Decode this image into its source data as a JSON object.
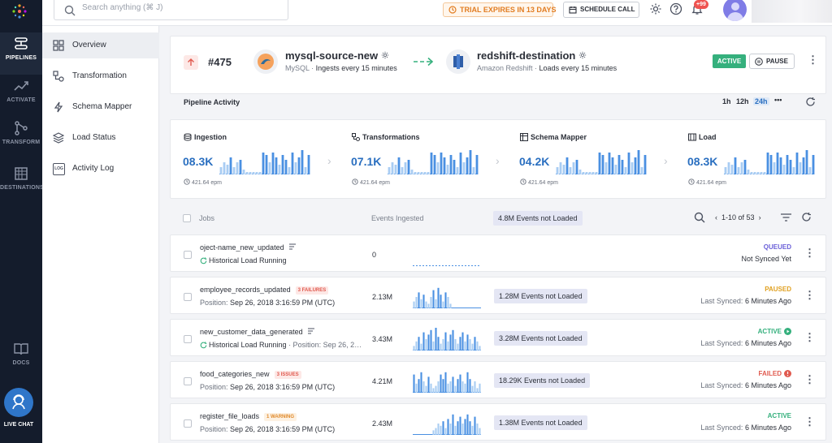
{
  "rail": {
    "items": [
      {
        "label": "PIPELINES",
        "icon": "pipelines-icon",
        "active": true
      },
      {
        "label": "ACTIVATE",
        "icon": "activate-icon",
        "active": false
      },
      {
        "label": "TRANSFORM",
        "icon": "transform-icon",
        "active": false
      },
      {
        "label": "DESTINATIONS",
        "icon": "destinations-icon",
        "active": false
      }
    ],
    "docs_label": "DOCS",
    "chat_label": "LIVE CHAT"
  },
  "topbar": {
    "search_placeholder": "Search anything (⌘ J)",
    "trial": "TRIAL EXPIRES IN 13 DAYS",
    "schedule_call": "SCHEDULE CALL",
    "notifications_count": "+99"
  },
  "subnav": {
    "items": [
      {
        "label": "Overview",
        "icon": "overview-icon",
        "active": true
      },
      {
        "label": "Transformation",
        "icon": "transformation-icon",
        "active": false
      },
      {
        "label": "Schema Mapper",
        "icon": "schema-mapper-icon",
        "active": false
      },
      {
        "label": "Load Status",
        "icon": "load-status-icon",
        "active": false
      },
      {
        "label": "Activity Log",
        "icon": "activity-log-icon",
        "active": false
      }
    ]
  },
  "pipeline": {
    "id": "#475",
    "source": {
      "name": "mysql-source-new",
      "type": "MySQL",
      "schedule": "Ingests every 15 minutes"
    },
    "destination": {
      "name": "redshift-destination",
      "type": "Amazon Redshift",
      "schedule": "Loads every 15 minutes"
    },
    "status": "ACTIVE",
    "pause_label": "PAUSE"
  },
  "activity": {
    "title": "Pipeline Activity",
    "ranges": [
      "1h",
      "12h",
      "24h"
    ],
    "selected_range": "24h",
    "more": "•••",
    "stats": [
      {
        "label": "Ingestion",
        "value": "08.3K",
        "epm": "421.64 epm",
        "bars": [
          0.3,
          0.5,
          0.4,
          0.7,
          0.3,
          0.5,
          0.6,
          0.2,
          0.1,
          0.1,
          0.1,
          0.1,
          0.1,
          0.9,
          0.8,
          0.5,
          0.9,
          0.7,
          0.4,
          0.8,
          0.6,
          0.3,
          0.9,
          0.5,
          0.7,
          1.0,
          0.3,
          0.8
        ]
      },
      {
        "label": "Transformations",
        "value": "07.1K",
        "epm": "421.64 epm",
        "bars": [
          0.3,
          0.5,
          0.4,
          0.7,
          0.3,
          0.5,
          0.6,
          0.2,
          0.1,
          0.1,
          0.1,
          0.1,
          0.1,
          0.9,
          0.8,
          0.5,
          0.9,
          0.7,
          0.4,
          0.8,
          0.6,
          0.3,
          0.9,
          0.5,
          0.7,
          1.0,
          0.3,
          0.8
        ]
      },
      {
        "label": "Schema Mapper",
        "value": "04.2K",
        "epm": "421.64 epm",
        "bars": [
          0.3,
          0.5,
          0.4,
          0.7,
          0.3,
          0.5,
          0.6,
          0.2,
          0.1,
          0.1,
          0.1,
          0.1,
          0.1,
          0.9,
          0.8,
          0.5,
          0.9,
          0.7,
          0.4,
          0.8,
          0.6,
          0.3,
          0.9,
          0.5,
          0.7,
          1.0,
          0.3,
          0.8
        ]
      },
      {
        "label": "Load",
        "value": "08.3K",
        "epm": "421.64 epm",
        "bars": [
          0.3,
          0.5,
          0.4,
          0.7,
          0.3,
          0.5,
          0.6,
          0.2,
          0.1,
          0.1,
          0.1,
          0.1,
          0.1,
          0.9,
          0.8,
          0.5,
          0.9,
          0.7,
          0.4,
          0.8,
          0.6,
          0.3,
          0.9,
          0.5,
          0.7,
          1.0,
          0.3,
          0.8
        ]
      }
    ]
  },
  "jobs": {
    "header": {
      "jobs": "Jobs",
      "events": "Events Ingested",
      "not_loaded": "4.8M Events not Loaded",
      "pager": "1-10 of 53"
    },
    "rows": [
      {
        "name": "oject-name_new_updated",
        "tag": "",
        "tag_color": "",
        "has_list_icon": true,
        "sub_prefix": "",
        "sub_value": "Historical Load Running",
        "sub_suffix": "",
        "sub_icon": "refresh-icon",
        "count": "0",
        "bars": [],
        "not_loaded": "",
        "status": "QUEUED",
        "status_color": "#6a5fd8",
        "status_icon": "",
        "sync_prefix": "",
        "sync_value": "Not Synced Yet"
      },
      {
        "name": "employee_records_updated",
        "tag": "3 FAILURES",
        "tag_color": "red",
        "has_list_icon": false,
        "sub_prefix": "Position: ",
        "sub_value": "Sep 26, 2018 3:16:59 PM (UTC)",
        "sub_suffix": "",
        "sub_icon": "",
        "count": "2.13M",
        "bars": [
          0.3,
          0.5,
          0.7,
          0.4,
          0.6,
          0.3,
          0.2,
          0.5,
          0.8,
          0.4,
          0.9,
          0.6,
          0.3,
          0.7,
          0.5,
          0.2,
          0,
          0,
          0,
          0,
          0,
          0,
          0,
          0,
          0,
          0,
          0,
          0
        ],
        "not_loaded": "1.28M Events not Loaded",
        "status": "PAUSED",
        "status_color": "#e0a020",
        "status_icon": "",
        "sync_prefix": "Last Synced: ",
        "sync_value": "6 Minutes Ago"
      },
      {
        "name": "new_customer_data_generated",
        "tag": "",
        "tag_color": "",
        "has_list_icon": true,
        "sub_prefix": "",
        "sub_value": "Historical Load Running",
        "sub_suffix": " · Position:  Sep 26, 2…",
        "sub_icon": "refresh-icon",
        "count": "3.43M",
        "bars": [
          0.2,
          0.4,
          0.6,
          0.3,
          0.8,
          0.5,
          0.7,
          0.9,
          0.4,
          1.0,
          0.6,
          0.3,
          0.5,
          0.8,
          0.4,
          0.7,
          0.9,
          0.5,
          0.3,
          0.6,
          0.8,
          0.4,
          0.7,
          0.5,
          0.3,
          0.6,
          0.4,
          0.2
        ],
        "not_loaded": "3.28M Events not Loaded",
        "status": "ACTIVE",
        "status_color": "#35b07d",
        "status_icon": "play-icon",
        "sync_prefix": "Last Synced: ",
        "sync_value": "6 Minutes Ago"
      },
      {
        "name": "food_categories_new",
        "tag": "3 ISSUES",
        "tag_color": "red",
        "has_list_icon": false,
        "sub_prefix": "Position: ",
        "sub_value": "Sep 26, 2018 3:16:59 PM (UTC)",
        "sub_suffix": "",
        "sub_icon": "",
        "count": "4.21M",
        "bars": [
          0.8,
          0.4,
          0.6,
          0.9,
          0.5,
          0.3,
          0.7,
          0.4,
          0.2,
          0.3,
          0.5,
          0.8,
          0.6,
          0.9,
          0.4,
          0.5,
          0.7,
          0.3,
          0.6,
          0.8,
          0.5,
          0.4,
          0.9,
          0.6,
          0.3,
          0.5,
          0.2,
          0.4
        ],
        "not_loaded": "18.29K Events not Loaded",
        "status": "FAILED",
        "status_color": "#e05a4f",
        "status_icon": "alert-icon",
        "sync_prefix": "Last Synced: ",
        "sync_value": "6 Minutes Ago"
      },
      {
        "name": "register_file_loads",
        "tag": "1 WARNING",
        "tag_color": "orange",
        "has_list_icon": false,
        "sub_prefix": "Position: ",
        "sub_value": "Sep 26, 2018 3:16:59 PM (UTC)",
        "sub_suffix": "",
        "sub_icon": "",
        "count": "2.43M",
        "bars": [
          0,
          0,
          0,
          0,
          0,
          0,
          0,
          0,
          0.2,
          0.3,
          0.5,
          0.4,
          0.6,
          0.3,
          0.7,
          0.5,
          0.9,
          0.4,
          0.6,
          0.8,
          0.5,
          0.7,
          0.9,
          0.6,
          0.4,
          0.8,
          0.5,
          0.3
        ],
        "not_loaded": "1.38M Events not Loaded",
        "status": "ACTIVE",
        "status_color": "#35b07d",
        "status_icon": "",
        "sync_prefix": "Last Synced: ",
        "sync_value": "6 Minutes Ago"
      }
    ]
  },
  "colors": {
    "accent": "#2a6fc0",
    "bar": "#4a90e2",
    "bar_light": "#a9cdf3"
  }
}
